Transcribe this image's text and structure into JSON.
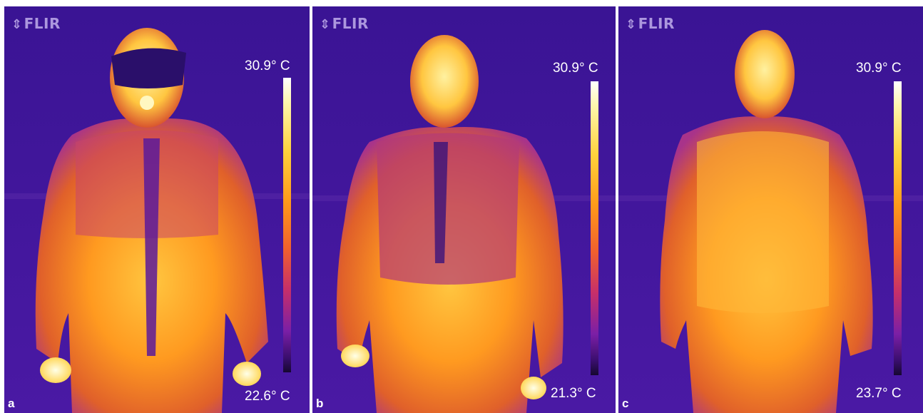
{
  "logo": "FLIR",
  "panels": [
    {
      "letter": "a",
      "max_temp": "30.9° C",
      "min_temp": "22.6° C"
    },
    {
      "letter": "b",
      "max_temp": "30.9° C",
      "min_temp": "21.3° C"
    },
    {
      "letter": "c",
      "max_temp": "30.9° C",
      "min_temp": "23.7° C"
    }
  ],
  "colors": {
    "background": "#3c159a",
    "cool": "#7a1fa8",
    "warm": "#ff9a20",
    "hot": "#fff3b0"
  }
}
